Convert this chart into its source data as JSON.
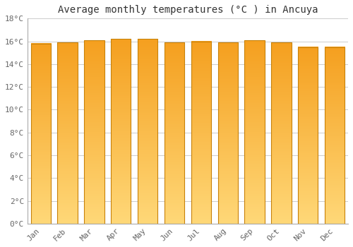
{
  "title": "Average monthly temperatures (°C ) in Ancuya",
  "months": [
    "Jan",
    "Feb",
    "Mar",
    "Apr",
    "May",
    "Jun",
    "Jul",
    "Aug",
    "Sep",
    "Oct",
    "Nov",
    "Dec"
  ],
  "values": [
    15.8,
    15.9,
    16.1,
    16.2,
    16.2,
    15.9,
    16.0,
    15.9,
    16.1,
    15.9,
    15.5,
    15.5
  ],
  "ylim": [
    0,
    18
  ],
  "yticks": [
    0,
    2,
    4,
    6,
    8,
    10,
    12,
    14,
    16,
    18
  ],
  "bar_color_center": "#F5A623",
  "bar_color_edge": "#E8920F",
  "bar_color_light": "#FFD080",
  "background_color": "#FFFFFF",
  "grid_color": "#CCCCCC",
  "title_fontsize": 10,
  "tick_fontsize": 8,
  "bar_width": 0.75,
  "figsize": [
    5.0,
    3.5
  ],
  "dpi": 100
}
